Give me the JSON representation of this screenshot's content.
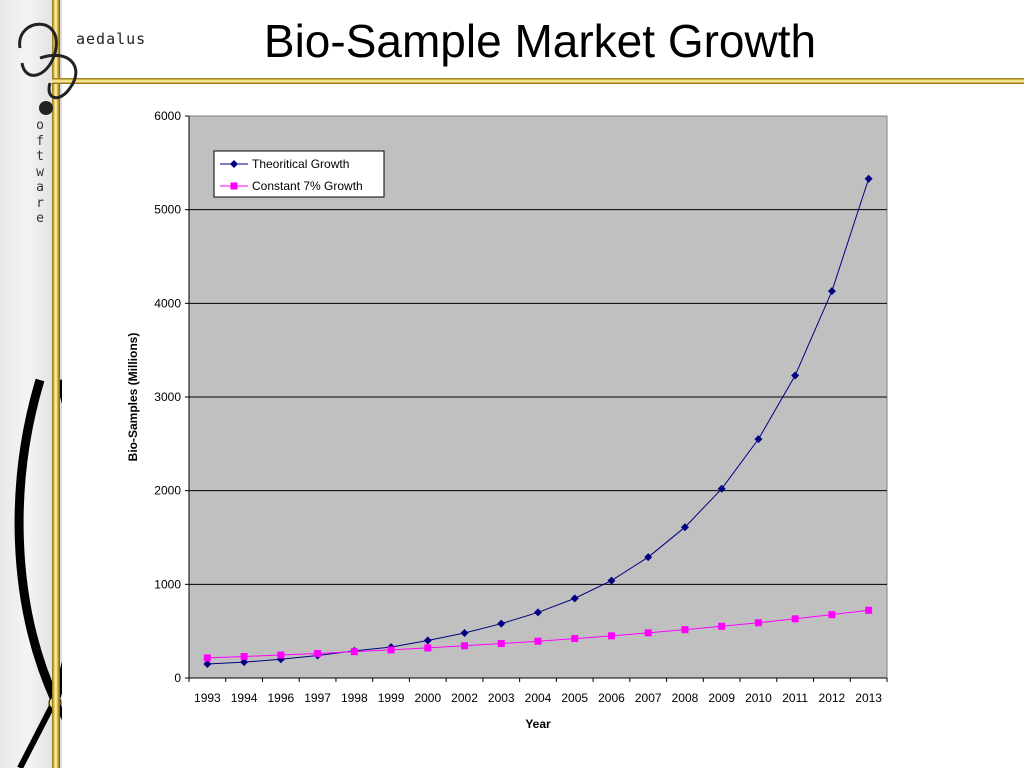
{
  "slide": {
    "title": "Bio-Sample Market Growth",
    "logo_text": "aedalus",
    "vertical_text": "oftware",
    "accent_color": "#d4af37"
  },
  "chart_data": {
    "type": "line",
    "title": "",
    "xlabel": "Year",
    "ylabel": "Bio-Samples (Millions)",
    "ylim": [
      0,
      6000
    ],
    "yticks": [
      0,
      1000,
      2000,
      3000,
      4000,
      5000,
      6000
    ],
    "grid": true,
    "legend_position": "top-left",
    "plot_background": "#c0c0c0",
    "categories": [
      "1993",
      "1994",
      "1996",
      "1997",
      "1998",
      "1999",
      "2000",
      "2002",
      "2003",
      "2004",
      "2005",
      "2006",
      "2007",
      "2008",
      "2009",
      "2010",
      "2011",
      "2012",
      "2013"
    ],
    "series": [
      {
        "name": "Theoritical Growth",
        "color": "#000080",
        "marker": "diamond",
        "values": [
          150,
          170,
          200,
          240,
          290,
          330,
          400,
          480,
          580,
          700,
          850,
          1040,
          1290,
          1610,
          2020,
          2550,
          3230,
          4130,
          5330
        ]
      },
      {
        "name": "Constant 7% Growth",
        "color": "#ff00ff",
        "marker": "square",
        "values": [
          215,
          230,
          245,
          262,
          281,
          300,
          321,
          344,
          368,
          393,
          421,
          450,
          482,
          516,
          552,
          590,
          632,
          676,
          723
        ]
      }
    ]
  }
}
